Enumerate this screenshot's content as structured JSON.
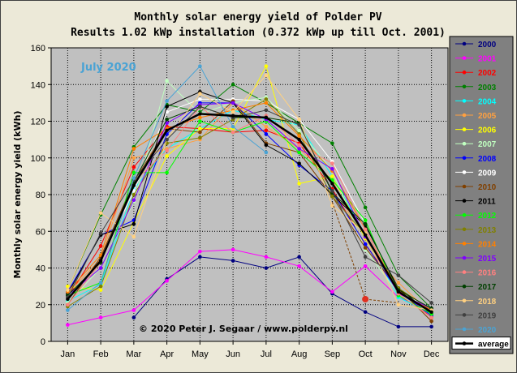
{
  "chart_data": {
    "type": "line",
    "title": "Monthly  solar energy yield of Polder PV",
    "subtitle": "Results 1.02 kWp installation (0.372 kWp up till Oct. 2001)",
    "ylabel": "Monthly solar energy yield (kWh)",
    "xlabel": "",
    "ylim": [
      0,
      160
    ],
    "yticks": [
      0,
      20,
      40,
      60,
      80,
      100,
      120,
      140,
      160
    ],
    "grid": true,
    "legend_position": "right",
    "annotation": "July 2020",
    "copyright": "© 2020 Peter J. Segaar / www.polderpv.nl",
    "categories": [
      "Jan",
      "Feb",
      "Mar",
      "Apr",
      "May",
      "Jun",
      "Jul",
      "Aug",
      "Sep",
      "Oct",
      "Nov",
      "Dec"
    ],
    "series": [
      {
        "name": "2000",
        "color": "#000080",
        "values": [
          null,
          null,
          13,
          34,
          46,
          44,
          40,
          46,
          26,
          16,
          8,
          8
        ]
      },
      {
        "name": "2001",
        "color": "#ff00ff",
        "values": [
          9,
          13,
          17,
          33,
          49,
          50,
          46,
          41,
          27,
          41,
          24,
          17
        ]
      },
      {
        "name": "2002",
        "color": "#ff0000",
        "values": [
          24,
          52,
          95,
          117,
          116,
          114,
          115,
          108,
          83,
          53,
          28,
          13
        ]
      },
      {
        "name": "2003",
        "color": "#008000",
        "values": [
          28,
          69,
          106,
          129,
          125,
          140,
          130,
          119,
          108,
          73,
          36,
          18
        ]
      },
      {
        "name": "2004",
        "color": "#00ffff",
        "values": [
          22,
          31,
          83,
          105,
          116,
          126,
          121,
          118,
          90,
          58,
          24,
          15
        ]
      },
      {
        "name": "2005",
        "color": "#ffa040",
        "values": [
          26,
          45,
          100,
          105,
          110,
          130,
          117,
          105,
          88,
          52,
          32,
          15
        ]
      },
      {
        "name": "2006",
        "color": "#ffff00",
        "values": [
          30,
          28,
          65,
          101,
          116,
          116,
          150,
          86,
          90,
          56,
          27,
          16
        ]
      },
      {
        "name": "2007",
        "color": "#c0ffc0",
        "values": [
          21,
          40,
          76,
          142,
          124,
          130,
          133,
          115,
          93,
          50,
          26,
          14
        ]
      },
      {
        "name": "2008",
        "color": "#0000ff",
        "values": [
          27,
          58,
          66,
          113,
          130,
          130,
          113,
          96,
          82,
          53,
          27,
          14
        ]
      },
      {
        "name": "2009",
        "color": "#ffffff",
        "values": [
          24,
          44,
          82,
          125,
          132,
          132,
          131,
          121,
          98,
          64,
          27,
          18
        ]
      },
      {
        "name": "2010",
        "color": "#804000",
        "values": [
          20,
          46,
          87,
          116,
          114,
          131,
          108,
          103,
          79,
          51,
          29,
          11
        ]
      },
      {
        "name": "2011",
        "color": "#000000",
        "values": [
          26,
          58,
          64,
          128,
          136,
          130,
          107,
          97,
          80,
          63,
          29,
          15
        ]
      },
      {
        "name": "2012",
        "color": "#00ff00",
        "values": [
          25,
          32,
          92,
          92,
          120,
          114,
          120,
          103,
          88,
          66,
          25,
          15
        ]
      },
      {
        "name": "2013",
        "color": "#808000",
        "values": [
          19,
          30,
          80,
          108,
          111,
          121,
          132,
          113,
          79,
          58,
          29,
          17
        ]
      },
      {
        "name": "2014",
        "color": "#ff8000",
        "values": [
          27,
          47,
          105,
          116,
          122,
          126,
          130,
          112,
          93,
          61,
          27,
          17
        ]
      },
      {
        "name": "2015",
        "color": "#8000ff",
        "values": [
          25,
          40,
          77,
          119,
          129,
          130,
          121,
          105,
          94,
          57,
          26,
          18
        ]
      },
      {
        "name": "2016",
        "color": "#ff8080",
        "values": [
          20,
          43,
          87,
          104,
          128,
          114,
          123,
          107,
          97,
          61,
          26,
          13
        ]
      },
      {
        "name": "2017",
        "color": "#004000",
        "values": [
          25,
          43,
          87,
          121,
          128,
          122,
          122,
          119,
          81,
          64,
          28,
          18
        ]
      },
      {
        "name": "2018",
        "color": "#ffd080",
        "values": [
          28,
          70,
          57,
          110,
          135,
          125,
          145,
          121,
          74,
          59,
          20,
          17
        ]
      },
      {
        "name": "2019",
        "color": "#404040",
        "values": [
          24,
          59,
          88,
          110,
          128,
          122,
          126,
          118,
          82,
          46,
          36,
          21
        ]
      },
      {
        "name": "2020",
        "color": "#4aa3d4",
        "values": [
          17,
          32,
          89,
          131,
          150,
          117,
          103,
          null,
          null,
          null,
          null,
          null
        ]
      },
      {
        "name": "average",
        "color": "#000000",
        "values": [
          23,
          44,
          85,
          115,
          124,
          123,
          122,
          110,
          86,
          58,
          27,
          16
        ]
      }
    ],
    "extra_segment": {
      "color": "#804000",
      "from": {
        "x": "Sep",
        "y": 76
      },
      "to": {
        "x": "Oct",
        "y": 23
      },
      "marker": {
        "x": "Oct",
        "y": 23,
        "color": "#e03020"
      }
    }
  }
}
